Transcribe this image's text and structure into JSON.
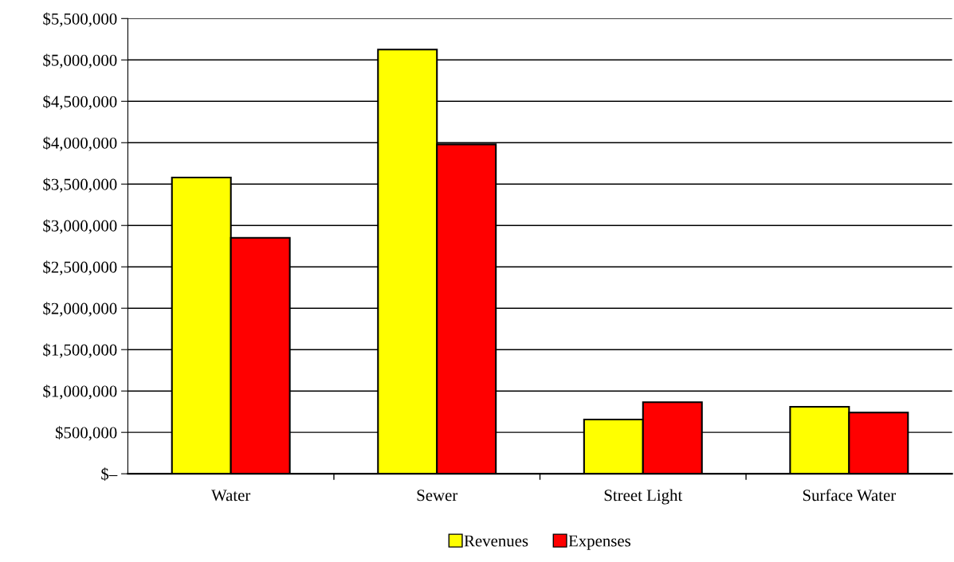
{
  "chart_data": {
    "type": "bar",
    "categories": [
      "Water",
      "Sewer",
      "Street Light",
      "Surface Water"
    ],
    "series": [
      {
        "name": "Revenues",
        "color": "#ffff00",
        "values": [
          3580000,
          5125000,
          655000,
          810000
        ]
      },
      {
        "name": "Expenses",
        "color": "#ff0000",
        "values": [
          2850000,
          3980000,
          865000,
          740000
        ]
      }
    ],
    "ylim": [
      0,
      5500000
    ],
    "yticks": [
      {
        "value": 0,
        "label": "$–"
      },
      {
        "value": 500000,
        "label": "$500,000"
      },
      {
        "value": 1000000,
        "label": "$1,000,000"
      },
      {
        "value": 1500000,
        "label": "$1,500,000"
      },
      {
        "value": 2000000,
        "label": "$2,000,000"
      },
      {
        "value": 2500000,
        "label": "$2,500,000"
      },
      {
        "value": 3000000,
        "label": "$3,000,000"
      },
      {
        "value": 3500000,
        "label": "$3,500,000"
      },
      {
        "value": 4000000,
        "label": "$4,000,000"
      },
      {
        "value": 4500000,
        "label": "$4,500,000"
      },
      {
        "value": 5000000,
        "label": "$5,000,000"
      },
      {
        "value": 5500000,
        "label": "$5,500,000"
      }
    ],
    "grid": "y",
    "legend": "bottom"
  }
}
